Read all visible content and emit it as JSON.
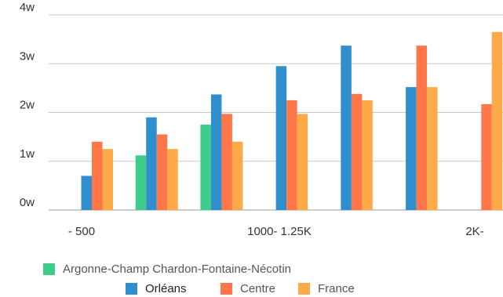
{
  "chart_data": {
    "type": "bar",
    "x_tick_labels": [
      "- 500",
      "1000- 1.25K",
      "2K-"
    ],
    "y_tick_labels": [
      "0w",
      "1w",
      "2w",
      "3w",
      "4w"
    ],
    "ylim": [
      0,
      4
    ],
    "grid": true,
    "legend_position": "bottom",
    "category_count": 7,
    "series": [
      {
        "name": "Argonne-Champ Chardon-Fontaine-Nécotin",
        "color": "#3dcc8a",
        "values": [
          null,
          1.12,
          1.75,
          null,
          null,
          null,
          null
        ]
      },
      {
        "name": "Orléans",
        "color": "#2f8fce",
        "values": [
          0.7,
          1.9,
          2.37,
          2.95,
          3.37,
          2.52,
          null
        ]
      },
      {
        "name": "Centre",
        "color": "#ff7748",
        "values": [
          1.4,
          1.55,
          1.97,
          2.25,
          2.38,
          3.37,
          2.17
        ]
      },
      {
        "name": "France",
        "color": "#ffaa48",
        "values": [
          1.25,
          1.25,
          1.4,
          1.97,
          2.25,
          2.52,
          3.65
        ]
      }
    ]
  }
}
